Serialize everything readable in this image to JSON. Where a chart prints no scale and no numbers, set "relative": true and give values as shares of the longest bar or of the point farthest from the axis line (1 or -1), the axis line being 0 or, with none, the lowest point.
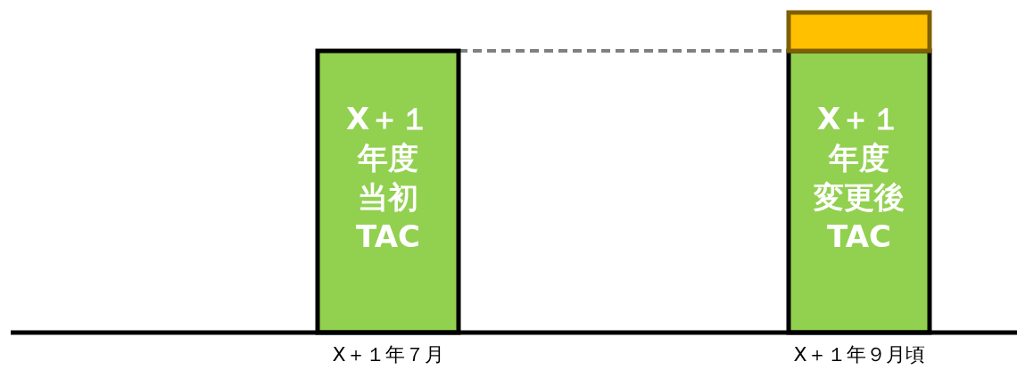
{
  "chart_data": {
    "type": "bar",
    "relative": true,
    "stacked": true,
    "categories": [
      "X＋１年７月",
      "X＋１年９月頃"
    ],
    "series": [
      {
        "color": "#92d050",
        "values": [
          0.88,
          0.88
        ]
      },
      {
        "color": "#ffc000",
        "values": [
          null,
          0.12
        ]
      }
    ],
    "ref_lines": [
      {
        "axis": "y",
        "value": 0.88,
        "color": "#808080",
        "line_style": "dashed"
      }
    ],
    "annotations": [
      "X＋１",
      "年度",
      "当初",
      "TAC",
      "X＋１",
      "年度",
      "変更後",
      "TAC"
    ]
  }
}
